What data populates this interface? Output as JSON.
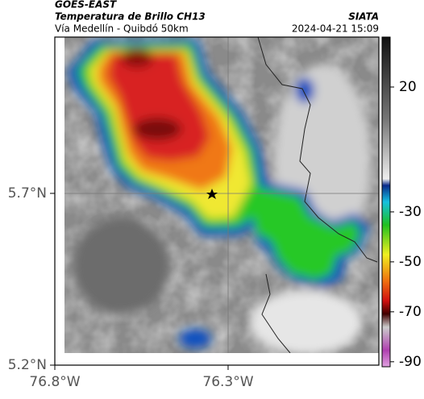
{
  "header": {
    "title": "GOES-EAST",
    "subtitle": "Temperatura de Brillo CH13",
    "route": "Vía Medellín - Quibdó 50km",
    "source": "SIATA",
    "timestamp": "2024-04-21 15:09"
  },
  "map": {
    "xlim": [
      -76.8,
      -75.865
    ],
    "ylim": [
      5.2,
      6.155
    ],
    "xticks": [
      {
        "value": -76.8,
        "label": "76.8°W"
      },
      {
        "value": -76.3,
        "label": "76.3°W"
      }
    ],
    "yticks": [
      {
        "value": 5.2,
        "label": "5.2°N"
      },
      {
        "value": 5.7,
        "label": "5.7°N"
      }
    ]
  },
  "colorbar": {
    "clim": [
      -92,
      40
    ],
    "ticks": [
      20,
      -30,
      -50,
      -70,
      -90
    ]
  }
}
